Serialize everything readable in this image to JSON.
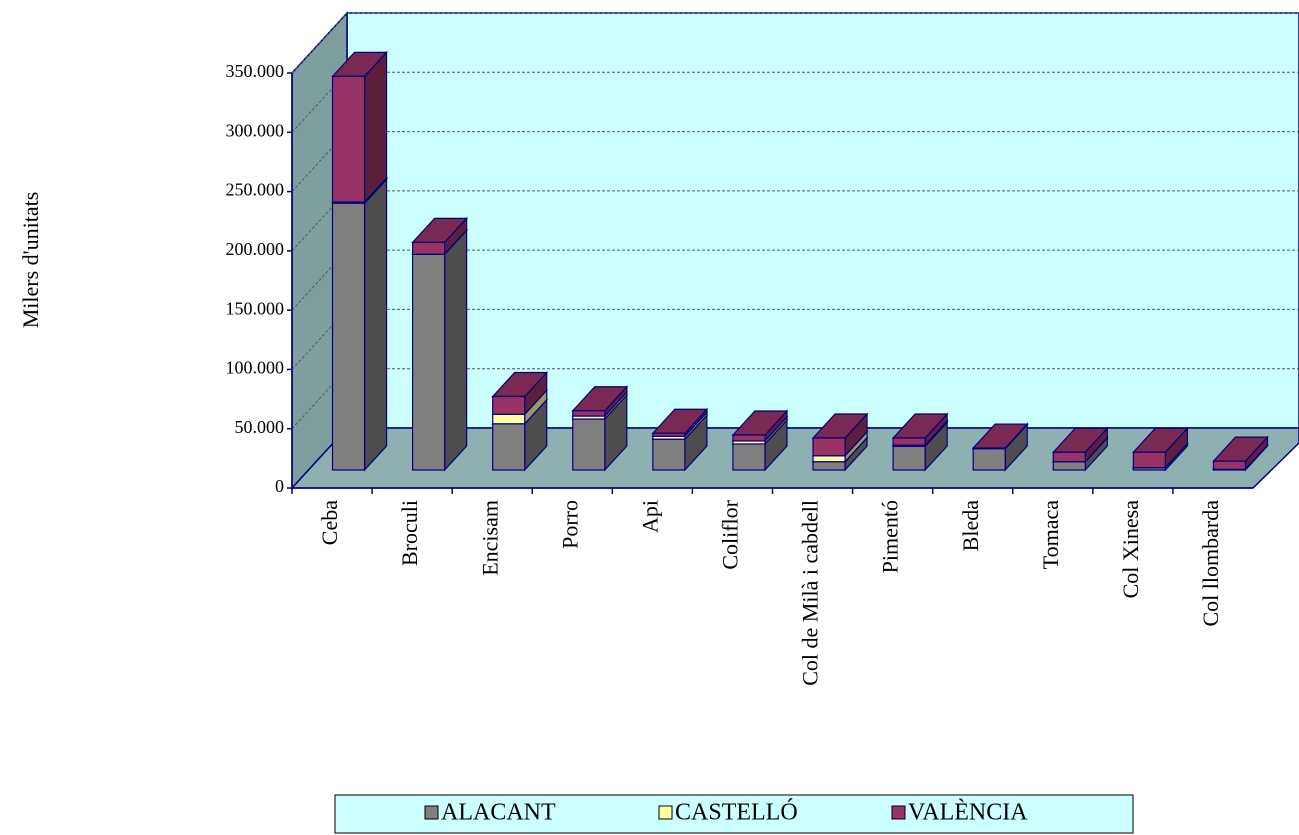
{
  "chart_data": {
    "type": "bar3d_stacked",
    "y_label": "Milers d'unitats",
    "categories": [
      "Ceba",
      "Broculi",
      "Encisam",
      "Porro",
      "Api",
      "Coliflor",
      "Col de Milà i cabdell",
      "Pimentó",
      "Bleda",
      "Tomaca",
      "Col Xinesa",
      "Col llombarda"
    ],
    "series": [
      {
        "name": "ALACANT",
        "color": "#808080",
        "values": [
          225000,
          182000,
          39000,
          43000,
          26000,
          22000,
          7000,
          20000,
          18000,
          7000,
          2000,
          500
        ]
      },
      {
        "name": "CASTELLÓ",
        "color": "#ffffa0",
        "values": [
          1000,
          0,
          8000,
          2500,
          2500,
          2500,
          5000,
          1000,
          0,
          0,
          0,
          0
        ]
      },
      {
        "name": "VALÈNCIA",
        "color": "#993366",
        "values": [
          106000,
          10000,
          15000,
          4500,
          2500,
          5000,
          15000,
          6000,
          500,
          8000,
          13000,
          7000
        ]
      }
    ],
    "ylim": [
      0,
      350000
    ],
    "yticks": [
      {
        "value": 0,
        "label": "0"
      },
      {
        "value": 50000,
        "label": "50.000"
      },
      {
        "value": 100000,
        "label": "100.000"
      },
      {
        "value": 150000,
        "label": "150.000"
      },
      {
        "value": 200000,
        "label": "200.000"
      },
      {
        "value": 250000,
        "label": "250.000"
      },
      {
        "value": 300000,
        "label": "300.000"
      },
      {
        "value": 350000,
        "label": "350.000"
      }
    ],
    "grid": true,
    "legend": "bottom"
  }
}
